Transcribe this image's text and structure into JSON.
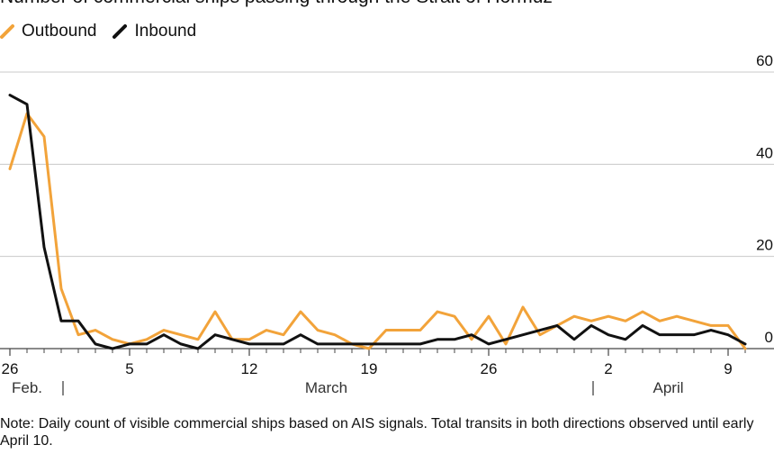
{
  "chart_data": {
    "type": "line",
    "title": "Number of commercial ships passing through the Strait of Hormuz",
    "legend": [
      {
        "name": "Outbound",
        "color": "#F2A33A"
      },
      {
        "name": "Inbound",
        "color": "#111111"
      }
    ],
    "x_unit": "day index (0 = Feb. 26)",
    "x": [
      0,
      1,
      2,
      3,
      4,
      5,
      6,
      7,
      8,
      9,
      10,
      11,
      12,
      13,
      14,
      15,
      16,
      17,
      18,
      19,
      20,
      21,
      22,
      23,
      24,
      25,
      26,
      27,
      28,
      29,
      30,
      31,
      32,
      33,
      34,
      35,
      36,
      37,
      38,
      39,
      40,
      41,
      42,
      43
    ],
    "series": [
      {
        "name": "Outbound",
        "color": "#F2A33A",
        "values": [
          39,
          51,
          46,
          13,
          3,
          4,
          2,
          1,
          2,
          4,
          3,
          2,
          8,
          2,
          2,
          4,
          3,
          8,
          4,
          3,
          1,
          0,
          4,
          4,
          4,
          8,
          7,
          2,
          7,
          1,
          9,
          3,
          5,
          7,
          6,
          7,
          6,
          8,
          6,
          7,
          6,
          5,
          5,
          0
        ]
      },
      {
        "name": "Inbound",
        "color": "#111111",
        "values": [
          55,
          53,
          22,
          6,
          6,
          1,
          0,
          1,
          1,
          3,
          1,
          0,
          3,
          2,
          1,
          1,
          1,
          3,
          1,
          1,
          1,
          1,
          1,
          1,
          1,
          2,
          2,
          3,
          1,
          2,
          3,
          4,
          5,
          2,
          5,
          3,
          2,
          5,
          3,
          3,
          3,
          4,
          3,
          1
        ]
      }
    ],
    "ylim": [
      0,
      60
    ],
    "y_ticks": [
      0,
      20,
      40,
      60
    ],
    "y_tick_labels": [
      "0",
      "20",
      "40",
      "60"
    ],
    "x_ticks": [
      0,
      7,
      14,
      21,
      28,
      35,
      42
    ],
    "x_tick_labels": [
      "26",
      "5",
      "12",
      "19",
      "26",
      "2",
      "9"
    ],
    "month_labels": [
      {
        "label": "Feb.",
        "x": 1
      },
      {
        "label": "March",
        "x": 18.5
      },
      {
        "label": "April",
        "x": 38.5
      }
    ],
    "month_dividers": [
      3,
      34
    ],
    "grid": true,
    "legend_position": "top-left",
    "y_axis_side": "right"
  },
  "note": "Note: Daily count of visible commercial ships based on AIS signals. Total transits in both directions observed until early April 10."
}
